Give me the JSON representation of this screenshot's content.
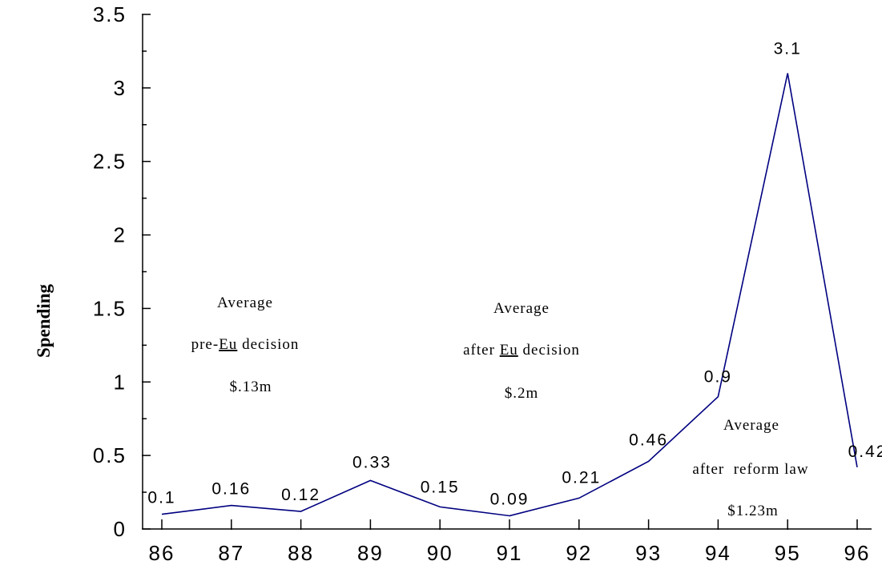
{
  "chart_data": {
    "type": "line",
    "ylabel": "Spending",
    "xlabel": "",
    "categories": [
      "86",
      "87",
      "88",
      "89",
      "90",
      "91",
      "92",
      "93",
      "94",
      "95",
      "96"
    ],
    "values": [
      0.1,
      0.16,
      0.12,
      0.33,
      0.15,
      0.09,
      0.21,
      0.46,
      0.9,
      3.1,
      0.42
    ],
    "data_labels": [
      "0.1",
      "0.16",
      "0.12",
      "0.33",
      "0.15",
      "0.09",
      "0.21",
      "0.46",
      "0.9",
      "3.1",
      "0.42"
    ],
    "ylim": [
      0,
      3.5
    ],
    "yticks": [
      0,
      0.5,
      1,
      1.5,
      2,
      2.5,
      3,
      3.5
    ],
    "ytick_labels": [
      "0",
      "0.5",
      "1",
      "1.5",
      "2",
      "2.5",
      "3",
      "3.5"
    ],
    "grid": false,
    "line_color": "#000080",
    "annotations": [
      {
        "lines": [
          "Average",
          "pre-",
          "Eu",
          " decision",
          "$.13m"
        ]
      },
      {
        "lines": [
          "Average",
          "after ",
          "Eu",
          " decision",
          "$.2m"
        ]
      },
      {
        "lines": [
          "Average",
          "after  reform law",
          "$1.23m"
        ]
      }
    ]
  }
}
